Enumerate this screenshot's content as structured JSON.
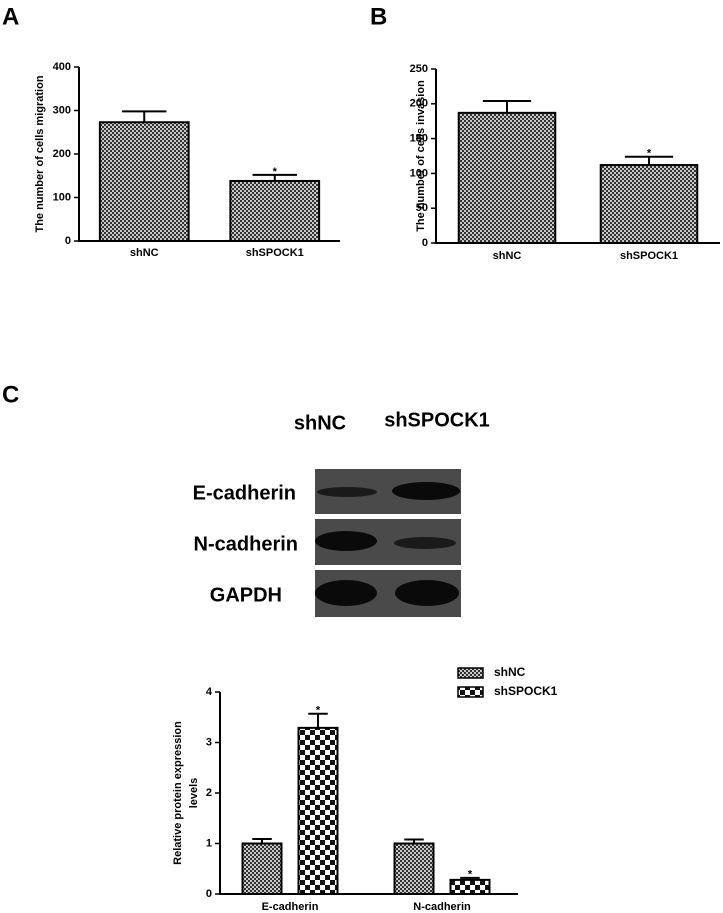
{
  "panels": [
    "A",
    "B",
    "C"
  ],
  "blot": {
    "lanes": [
      "shNC",
      "shSPOCK1"
    ],
    "rows": [
      "E-cadherin",
      "N-cadherin",
      "GAPDH"
    ]
  },
  "chart_data": [
    {
      "type": "bar",
      "ylabel": "The number of cells migration",
      "categories": [
        "shNC",
        "shSPOCK1"
      ],
      "values": [
        273,
        138
      ],
      "errors": [
        25,
        14
      ],
      "color": "#333333",
      "pattern": "fine",
      "ylim": [
        0,
        400
      ],
      "yticks": [
        0,
        100,
        200,
        300,
        400
      ],
      "annotations": [
        {
          "text": "*",
          "category": "shSPOCK1"
        }
      ]
    },
    {
      "type": "bar",
      "ylabel": "The number of cells invasion",
      "categories": [
        "shNC",
        "shSPOCK1"
      ],
      "values": [
        187,
        112
      ],
      "errors": [
        17,
        12
      ],
      "color": "#333333",
      "pattern": "fine",
      "ylim": [
        0,
        250
      ],
      "yticks": [
        0,
        50,
        100,
        150,
        200,
        250
      ],
      "annotations": [
        {
          "text": "*",
          "category": "shSPOCK1"
        }
      ]
    },
    {
      "type": "grouped_bar",
      "ylabel": "Relative protein expression levels",
      "categories": [
        "E-cadherin",
        "N-cadherin"
      ],
      "series": [
        {
          "name": "shNC",
          "color": "#333333",
          "pattern": "fine",
          "values": [
            1.0,
            1.0
          ],
          "errors": [
            0.09,
            0.08
          ]
        },
        {
          "name": "shSPOCK1",
          "color": "#111111",
          "pattern": "coarse",
          "values": [
            3.29,
            0.28
          ],
          "errors": [
            0.28,
            0.04
          ]
        }
      ],
      "ylim": [
        0,
        4
      ],
      "yticks": [
        0,
        1,
        2,
        3,
        4
      ],
      "legend": "top-right",
      "annotations": [
        {
          "text": "*",
          "category": "E-cadherin",
          "series": "shSPOCK1"
        },
        {
          "text": "*",
          "category": "N-cadherin",
          "series": "shSPOCK1"
        }
      ]
    }
  ]
}
